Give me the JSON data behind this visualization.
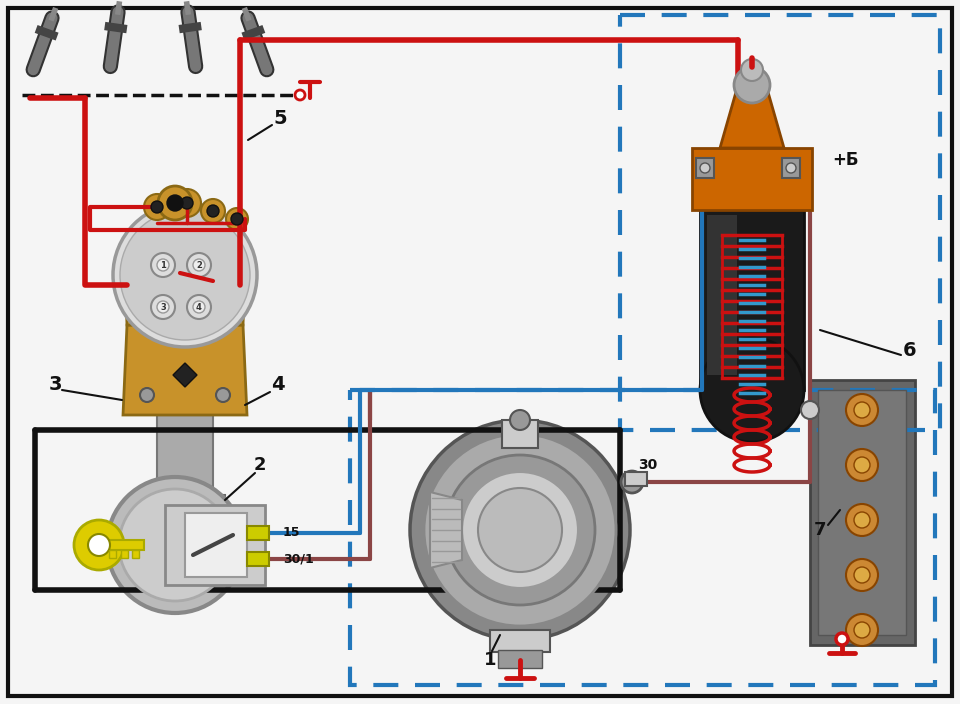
{
  "bg": "#f5f5f5",
  "border": "#111111",
  "red": "#cc1111",
  "black": "#111111",
  "blue": "#2277bb",
  "brown": "#8B4545",
  "gold": "#C8920A",
  "orange": "#cc6600",
  "gray_light": "#cccccc",
  "gray_med": "#999999",
  "gray_dark": "#555555",
  "fig_w": 9.6,
  "fig_h": 7.04,
  "dpi": 100
}
